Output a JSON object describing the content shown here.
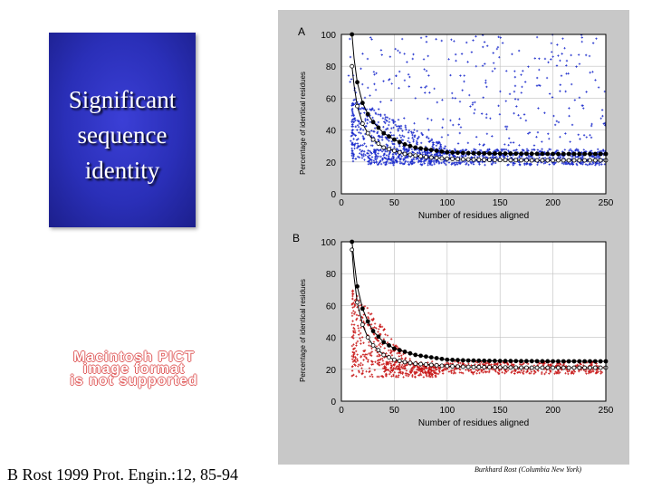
{
  "slide": {
    "title_lines": [
      "Significant",
      "sequence",
      "identity"
    ],
    "pict_notice_lines": [
      "Macintosh PICT",
      "image format",
      "is not supported"
    ],
    "citation": "B Rost 1999 Prot. Engin.:12, 85-94",
    "credit": "Burkhard Rost (Columbia New York)"
  },
  "colors": {
    "title_box": "#2a2fb8",
    "panel_a_points": "#1a2acc",
    "panel_b_points": "#c81818",
    "frame": "#c8c8c8"
  },
  "chart_data": [
    {
      "type": "scatter",
      "panel_label": "A",
      "xlabel": "Number of residues aligned",
      "ylabel": "Percentage of identical residues",
      "xlim": [
        0,
        250
      ],
      "ylim": [
        0,
        100
      ],
      "xticks": [
        "0",
        "50",
        "100",
        "150",
        "200",
        "250"
      ],
      "yticks": [
        "0",
        "20",
        "40",
        "60",
        "80",
        "100"
      ],
      "grid": true,
      "series": [
        {
          "marker": "filled-circle-line",
          "x": [
            10,
            12,
            15,
            20,
            25,
            30,
            40,
            50,
            60,
            70,
            80,
            100,
            120,
            150,
            180,
            200,
            220,
            250
          ],
          "values": [
            100,
            85,
            70,
            57,
            50,
            45,
            38,
            34,
            31,
            29,
            28,
            26,
            25.5,
            25.2,
            25.1,
            25,
            25,
            25
          ]
        },
        {
          "marker": "open-circle-line",
          "x": [
            10,
            12,
            15,
            20,
            25,
            30,
            40,
            50,
            60,
            70,
            80,
            100,
            120,
            150,
            180,
            200,
            220,
            250
          ],
          "values": [
            80,
            68,
            55,
            44,
            38,
            34,
            29,
            27,
            25,
            24,
            23,
            22,
            21.5,
            21.2,
            21,
            21,
            21,
            21
          ]
        },
        {
          "marker": "scatter-cloud",
          "description_values": "pairwise alignments, dense band 20-30% beyond 60 residues"
        }
      ]
    },
    {
      "type": "scatter",
      "panel_label": "B",
      "xlabel": "Number of residues aligned",
      "ylabel": "Percentage of identical residues",
      "xlim": [
        0,
        250
      ],
      "ylim": [
        0,
        100
      ],
      "xticks": [
        "0",
        "50",
        "100",
        "150",
        "200",
        "250"
      ],
      "yticks": [
        "0",
        "20",
        "40",
        "60",
        "80",
        "100"
      ],
      "grid": true,
      "series": [
        {
          "marker": "filled-circle-line",
          "x": [
            10,
            12,
            15,
            20,
            25,
            30,
            40,
            50,
            60,
            70,
            80,
            100,
            120,
            150,
            180,
            200,
            220,
            250
          ],
          "values": [
            100,
            88,
            72,
            58,
            50,
            44,
            37,
            33,
            31,
            29,
            28,
            26,
            25.5,
            25.2,
            25.1,
            25,
            25,
            25
          ]
        },
        {
          "marker": "open-circle-line",
          "x": [
            10,
            12,
            15,
            20,
            25,
            30,
            40,
            50,
            60,
            70,
            80,
            100,
            120,
            150,
            180,
            200,
            220,
            250
          ],
          "values": [
            95,
            78,
            62,
            48,
            40,
            35,
            29,
            26,
            24.5,
            23.5,
            23,
            22,
            21.5,
            21.2,
            21,
            21,
            21,
            21
          ]
        },
        {
          "marker": "scatter-cloud",
          "description_values": "pairwise alignments concentrated 15-45% for short lengths, 18-25% beyond 60 residues"
        }
      ]
    }
  ]
}
